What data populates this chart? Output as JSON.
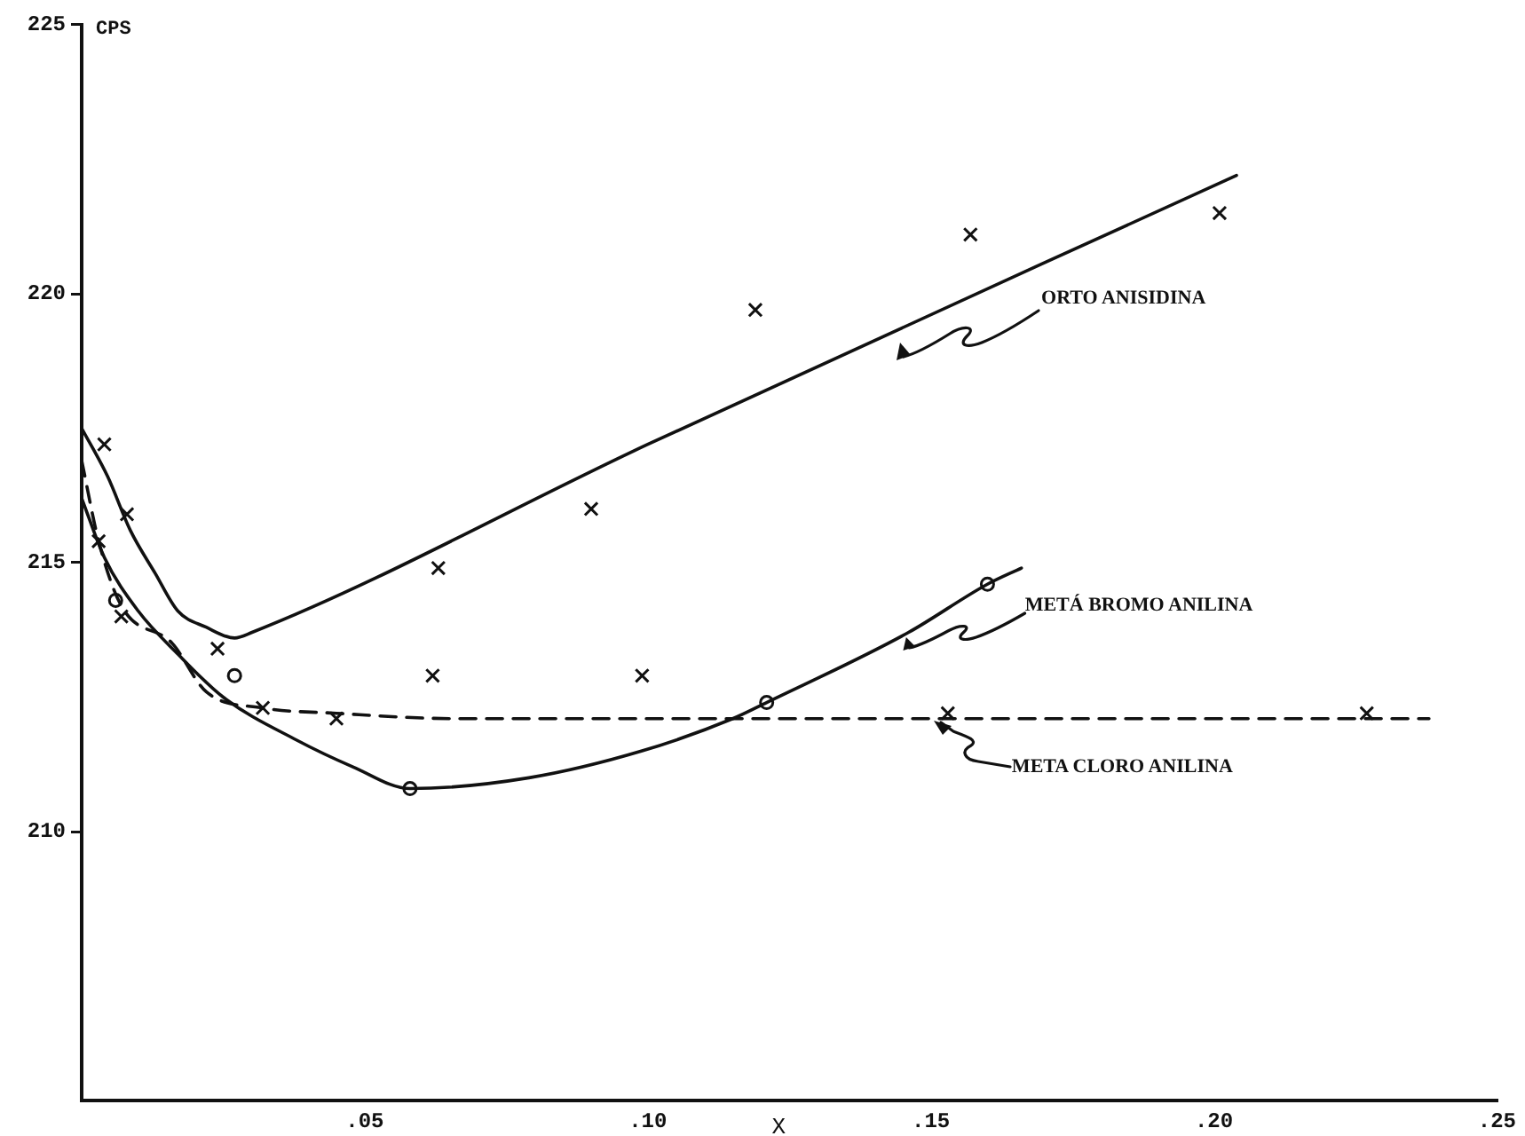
{
  "chart_data": {
    "type": "line",
    "xlabel": "X",
    "ylabel": "CPS",
    "xlim": [
      0,
      0.25
    ],
    "xticks": [
      {
        "value": 0.05,
        "label": ".05"
      },
      {
        "value": 0.1,
        "label": ".10"
      },
      {
        "value": 0.15,
        "label": ".15"
      },
      {
        "value": 0.2,
        "label": ".20"
      },
      {
        "value": 0.25,
        "label": ".25"
      }
    ],
    "ylim": [
      205,
      225
    ],
    "yticks": [
      210,
      215,
      220,
      225
    ],
    "grid": false,
    "legend": false,
    "series": [
      {
        "name": "ORTO ANISIDINA",
        "color": "#111111",
        "line_style": "solid",
        "x": [
          0,
          0.0046,
          0.0086,
          0.013,
          0.017,
          0.022,
          0.027,
          0.03,
          0.1,
          0.204
        ],
        "values": [
          217.5,
          216.6,
          215.6,
          214.8,
          214.1,
          213.8,
          213.6,
          213.7,
          217.2,
          222.2
        ]
      },
      {
        "type": "scatter",
        "color": "#111111",
        "marker": "cross",
        "x": [
          0.004,
          0.008,
          0.024,
          0.063,
          0.09,
          0.119,
          0.157,
          0.201
        ],
        "values": [
          217.2,
          215.9,
          213.4,
          214.9,
          216.0,
          219.7,
          221.1,
          221.5
        ]
      },
      {
        "name": "METÁ BROMO ANILINA",
        "color": "#111111",
        "line_style": "solid",
        "x": [
          0,
          0.004,
          0.01,
          0.017,
          0.025,
          0.038,
          0.048,
          0.058,
          0.079,
          0.099,
          0.115,
          0.121,
          0.146,
          0.16,
          0.166
        ],
        "values": [
          216.2,
          215.1,
          214.1,
          213.3,
          212.5,
          211.7,
          211.2,
          210.8,
          211.0,
          211.5,
          212.1,
          212.4,
          213.7,
          214.6,
          214.9
        ]
      },
      {
        "type": "scatter",
        "color": "#111111",
        "marker": "circle",
        "x": [
          0.006,
          0.027,
          0.058,
          0.121,
          0.16
        ],
        "values": [
          214.3,
          212.9,
          210.8,
          212.4,
          214.6
        ]
      },
      {
        "name": "META CLORO ANILINA",
        "color": "#111111",
        "line_style": "dashed",
        "x": [
          0,
          0.003,
          0.007,
          0.016,
          0.022,
          0.032,
          0.045,
          0.066,
          0.238
        ],
        "values": [
          216.9,
          215.4,
          214.2,
          213.5,
          212.6,
          212.3,
          212.2,
          212.1,
          212.1
        ]
      },
      {
        "type": "scatter",
        "color": "#111111",
        "marker": "cross",
        "x": [
          0.003,
          0.007,
          0.032,
          0.045,
          0.062,
          0.099,
          0.153,
          0.227
        ],
        "values": [
          215.4,
          214.0,
          212.3,
          212.1,
          212.9,
          212.9,
          212.2,
          212.2
        ]
      }
    ]
  }
}
